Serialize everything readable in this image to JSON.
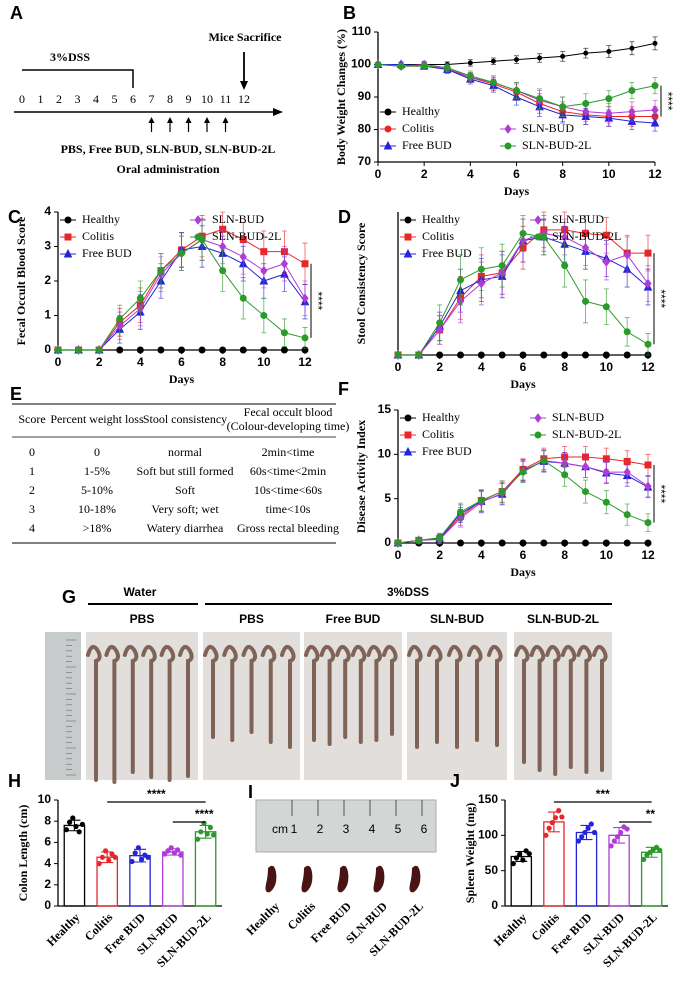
{
  "timeline": {
    "panel": "A",
    "phase": "3%DSS",
    "endpoint": "Mice Sacrifice",
    "days": [
      0,
      1,
      2,
      3,
      4,
      5,
      6,
      7,
      8,
      9,
      10,
      11,
      12
    ],
    "treatment": "PBS, Free BUD, SLN-BUD, SLN-BUD-2L",
    "route": "Oral administration"
  },
  "table": {
    "panel": "E",
    "header": [
      "Score",
      "Percent weight loss",
      "Stool consistency",
      "Fecal occult blood"
    ],
    "header_note": "(Colour-developing time)",
    "rows": [
      [
        "0",
        "0",
        "normal",
        "2min<time"
      ],
      [
        "1",
        "1-5%",
        "Soft but still formed",
        "60s<time<2min"
      ],
      [
        "2",
        "5-10%",
        "Soft",
        "10s<time<60s"
      ],
      [
        "3",
        "10-18%",
        "Very soft; wet",
        "time<10s"
      ],
      [
        "4",
        ">18%",
        "Watery diarrhea",
        "Gross rectal bleeding"
      ]
    ]
  },
  "photo_g": {
    "panel": "G",
    "control": "Water",
    "model": "3%DSS",
    "groups": [
      "PBS",
      "PBS",
      "Free BUD",
      "SLN-BUD",
      "SLN-BUD-2L"
    ]
  },
  "photo_i": {
    "panel": "I",
    "ruler_unit": "cm",
    "ruler_marks": [
      1,
      2,
      3,
      4,
      5,
      6
    ],
    "groups": [
      "Healthy",
      "Colitis",
      "Free BUD",
      "SLN-BUD",
      "SLN-BUD-2L"
    ]
  },
  "chart_data": [
    {
      "type": "line",
      "panel": "B",
      "y_label": "Body Weight Changes (%)",
      "x_label": "Days",
      "x": [
        0,
        1,
        2,
        3,
        4,
        5,
        6,
        7,
        8,
        9,
        10,
        11,
        12
      ],
      "xlim": [
        0,
        12
      ],
      "xticks": [
        0,
        2,
        4,
        6,
        8,
        10,
        12
      ],
      "ylim": [
        70,
        110
      ],
      "yticks": [
        70,
        80,
        90,
        100,
        110
      ],
      "legend": "lower left",
      "significance": {
        "label": "****",
        "between": [
          "Colitis",
          "SLN-BUD-2L"
        ]
      },
      "series": [
        {
          "name": "Healthy",
          "color": "#000000",
          "marker": "circle",
          "values": [
            100,
            100,
            100,
            100,
            100.5,
            101,
            101.5,
            102,
            102.5,
            103.5,
            104,
            105,
            106.5
          ],
          "errors": [
            0.5,
            0.5,
            0.8,
            0.8,
            1,
            1,
            1.2,
            1.3,
            1.5,
            1.5,
            1.8,
            2,
            2
          ]
        },
        {
          "name": "Colitis",
          "color": "#e8262a",
          "marker": "circle",
          "values": [
            100,
            99.5,
            99.5,
            98.5,
            96,
            94,
            91.5,
            88,
            85.5,
            84.5,
            84,
            84,
            84
          ],
          "errors": [
            0.5,
            0.8,
            1,
            1.2,
            1.5,
            2,
            2.5,
            3,
            3,
            3,
            3,
            3,
            3
          ]
        },
        {
          "name": "Free BUD",
          "color": "#2424d8",
          "marker": "triangle",
          "values": [
            100,
            100,
            99.5,
            98.5,
            95.5,
            93.5,
            90,
            87,
            84.5,
            84,
            83.5,
            82.5,
            82
          ],
          "errors": [
            0.5,
            0.8,
            1,
            1.2,
            1.5,
            2,
            2.5,
            3,
            2.5,
            2.5,
            2.5,
            2.5,
            2.5
          ]
        },
        {
          "name": "SLN-BUD",
          "color": "#b03cd6",
          "marker": "diamond",
          "values": [
            100,
            99.5,
            100,
            99,
            96,
            94.5,
            92,
            89,
            87,
            85.5,
            85,
            85.5,
            86
          ],
          "errors": [
            0.5,
            0.8,
            1,
            1.2,
            1.5,
            2,
            2.5,
            3,
            3,
            3,
            3,
            3,
            3
          ]
        },
        {
          "name": "SLN-BUD-2L",
          "color": "#2a9a2a",
          "marker": "circle",
          "values": [
            100,
            99.5,
            99.5,
            99,
            96.5,
            94.5,
            92,
            89.5,
            87,
            88,
            89.5,
            92,
            93.5
          ],
          "errors": [
            0.5,
            0.8,
            1,
            1.2,
            1.5,
            2,
            2.5,
            3,
            3,
            3,
            2.5,
            2.5,
            2.5
          ]
        }
      ]
    },
    {
      "type": "line",
      "panel": "C",
      "y_label": "Fecal Occult Blood Score",
      "x_label": "Days",
      "x": [
        0,
        1,
        2,
        3,
        4,
        5,
        6,
        7,
        8,
        9,
        10,
        11,
        12
      ],
      "xlim": [
        0,
        12
      ],
      "xticks": [
        0,
        2,
        4,
        6,
        8,
        10,
        12
      ],
      "ylim": [
        0,
        4
      ],
      "yticks": [
        0,
        1,
        2,
        3,
        4
      ],
      "legend": "upper left",
      "significance": {
        "label": "****",
        "between": [
          "Colitis",
          "SLN-BUD-2L"
        ]
      },
      "series": [
        {
          "name": "Healthy",
          "color": "#000000",
          "marker": "circle",
          "values": [
            0,
            0,
            0,
            0,
            0,
            0,
            0,
            0,
            0,
            0,
            0,
            0,
            0
          ]
        },
        {
          "name": "Colitis",
          "color": "#e8262a",
          "marker": "square",
          "values": [
            0,
            0,
            0,
            0.8,
            1.3,
            2.3,
            2.9,
            3.3,
            3.5,
            3.2,
            2.85,
            2.85,
            2.5
          ],
          "errors": [
            0,
            0,
            0,
            0.4,
            0.5,
            0.5,
            0.5,
            0.6,
            0.5,
            0.5,
            0.6,
            0.6,
            0.6
          ]
        },
        {
          "name": "Free BUD",
          "color": "#2424d8",
          "marker": "triangle",
          "values": [
            0,
            0,
            0,
            0.6,
            1.1,
            2,
            2.9,
            3,
            2.8,
            2.5,
            2,
            2.2,
            1.4
          ],
          "errors": [
            0,
            0,
            0,
            0.4,
            0.5,
            0.5,
            0.5,
            0.6,
            0.5,
            0.5,
            0.5,
            0.5,
            0.5
          ]
        },
        {
          "name": "SLN-BUD",
          "color": "#b03cd6",
          "marker": "diamond",
          "values": [
            0,
            0,
            0,
            0.7,
            1.2,
            2.2,
            2.8,
            3.2,
            3,
            2.7,
            2.3,
            2.5,
            1.5
          ],
          "errors": [
            0,
            0,
            0,
            0.4,
            0.5,
            0.5,
            0.5,
            0.6,
            0.5,
            0.5,
            0.5,
            0.5,
            0.5
          ]
        },
        {
          "name": "SLN-BUD-2L",
          "color": "#2a9a2a",
          "marker": "circle",
          "values": [
            0,
            0,
            0,
            0.9,
            1.5,
            2.3,
            2.8,
            3.2,
            2.3,
            1.5,
            1,
            0.5,
            0.35
          ],
          "errors": [
            0,
            0,
            0,
            0.4,
            0.5,
            0.5,
            0.5,
            0.6,
            0.6,
            0.6,
            0.5,
            0.4,
            0.3
          ]
        }
      ]
    },
    {
      "type": "line",
      "panel": "D",
      "y_label": "Stool Consistency Score",
      "x_label": "Days",
      "x": [
        0,
        1,
        2,
        3,
        4,
        5,
        6,
        7,
        8,
        9,
        10,
        11,
        12
      ],
      "xlim": [
        0,
        12
      ],
      "xticks": [
        0,
        2,
        4,
        6,
        8,
        10,
        12
      ],
      "ylim": [
        0,
        4
      ],
      "legend": "upper left",
      "significance": {
        "label": "****",
        "between": [
          "Colitis",
          "SLN-BUD-2L"
        ]
      },
      "series": [
        {
          "name": "Healthy",
          "color": "#000000",
          "marker": "circle",
          "values": [
            0,
            0,
            0,
            0,
            0,
            0,
            0,
            0,
            0,
            0,
            0,
            0,
            0
          ]
        },
        {
          "name": "Colitis",
          "color": "#e8262a",
          "marker": "square",
          "values": [
            0,
            0,
            0.7,
            1.6,
            2.2,
            2.3,
            3,
            3.5,
            3.5,
            3.4,
            3.35,
            2.85,
            2.85
          ],
          "errors": [
            0,
            0,
            0.4,
            0.6,
            0.6,
            0.6,
            0.6,
            0.5,
            0.5,
            0.5,
            0.5,
            0.5,
            0.5
          ]
        },
        {
          "name": "Free BUD",
          "color": "#2424d8",
          "marker": "triangle",
          "values": [
            0,
            0,
            0.8,
            1.8,
            2.1,
            2.2,
            3.2,
            3.3,
            3.1,
            2.9,
            2.7,
            2.4,
            1.9
          ],
          "errors": [
            0,
            0,
            0.4,
            0.6,
            0.6,
            0.6,
            0.6,
            0.5,
            0.5,
            0.5,
            0.5,
            0.5,
            0.5
          ]
        },
        {
          "name": "SLN-BUD",
          "color": "#b03cd6",
          "marker": "diamond",
          "values": [
            0,
            0,
            0.7,
            1.5,
            2,
            2.3,
            3.2,
            3.4,
            3.3,
            3,
            2.6,
            2.8,
            2
          ],
          "errors": [
            0,
            0,
            0.4,
            0.6,
            0.6,
            0.6,
            0.6,
            0.5,
            0.5,
            0.5,
            0.5,
            0.5,
            0.5
          ]
        },
        {
          "name": "SLN-BUD-2L",
          "color": "#2a9a2a",
          "marker": "circle",
          "values": [
            0,
            0,
            0.9,
            2.1,
            2.4,
            2.5,
            3.4,
            3.3,
            2.5,
            1.5,
            1.35,
            0.65,
            0.3
          ],
          "errors": [
            0,
            0,
            0.5,
            0.7,
            0.6,
            0.6,
            0.5,
            0.5,
            0.6,
            0.6,
            0.5,
            0.4,
            0.3
          ]
        }
      ]
    },
    {
      "type": "line",
      "panel": "F",
      "y_label": "Disease Activity Index",
      "x_label": "Days",
      "x": [
        0,
        1,
        2,
        3,
        4,
        5,
        6,
        7,
        8,
        9,
        10,
        11,
        12
      ],
      "xlim": [
        0,
        12
      ],
      "xticks": [
        0,
        2,
        4,
        6,
        8,
        10,
        12
      ],
      "ylim": [
        0,
        15
      ],
      "yticks": [
        0,
        5,
        10,
        15
      ],
      "legend": "upper left",
      "significance": {
        "label": "****",
        "between": [
          "Colitis",
          "SLN-BUD-2L"
        ]
      },
      "series": [
        {
          "name": "Healthy",
          "color": "#000000",
          "marker": "circle",
          "values": [
            0,
            0,
            0,
            0,
            0,
            0,
            0,
            0,
            0,
            0,
            0,
            0,
            0
          ]
        },
        {
          "name": "Colitis",
          "color": "#e8262a",
          "marker": "square",
          "values": [
            0,
            0.3,
            0.5,
            3,
            4.8,
            5.8,
            8.3,
            9.5,
            9.7,
            9.7,
            9.5,
            9.2,
            8.8
          ],
          "errors": [
            0,
            0.3,
            0.5,
            1,
            1.2,
            1.2,
            1.2,
            1.2,
            1.2,
            1.2,
            1.2,
            1.2,
            1.2
          ]
        },
        {
          "name": "Free BUD",
          "color": "#2424d8",
          "marker": "triangle",
          "values": [
            0,
            0.3,
            0.5,
            3.3,
            4.7,
            5.5,
            8.2,
            9.2,
            9,
            8.6,
            7.9,
            7.6,
            6.3
          ],
          "errors": [
            0,
            0.3,
            0.5,
            1,
            1.2,
            1.2,
            1.2,
            1.2,
            1.2,
            1.2,
            1.2,
            1.2,
            1.2
          ]
        },
        {
          "name": "SLN-BUD",
          "color": "#b03cd6",
          "marker": "diamond",
          "values": [
            0,
            0.3,
            0.4,
            2.8,
            4.6,
            5.6,
            8.1,
            9.3,
            9,
            8.6,
            8,
            8,
            6.4
          ],
          "errors": [
            0,
            0.3,
            0.5,
            1,
            1.2,
            1.2,
            1.2,
            1.2,
            1.2,
            1.2,
            1.2,
            1.2,
            1.2
          ]
        },
        {
          "name": "SLN-BUD-2L",
          "color": "#2a9a2a",
          "marker": "circle",
          "values": [
            0,
            0.3,
            0.6,
            3.5,
            4.8,
            5.8,
            8,
            9.3,
            7.7,
            5.8,
            4.6,
            3.2,
            2.3
          ],
          "errors": [
            0,
            0.3,
            0.5,
            1,
            1.2,
            1.2,
            1.2,
            1.2,
            1.3,
            1.3,
            1.3,
            1.2,
            1
          ]
        }
      ]
    },
    {
      "type": "bar",
      "panel": "H",
      "y_label": "Colon Length (cm)",
      "categories": [
        "Healthy",
        "Colitis",
        "Free BUD",
        "SLN-BUD",
        "SLN-BUD-2L"
      ],
      "colors": [
        "#000000",
        "#e8262a",
        "#2424d8",
        "#b03cd6",
        "#2a9a2a"
      ],
      "values": [
        7.6,
        4.6,
        4.75,
        5.1,
        7.0
      ],
      "errors": [
        0.5,
        0.5,
        0.6,
        0.3,
        0.6
      ],
      "points": [
        [
          7.2,
          7.9,
          8.3,
          7.5,
          7.0,
          7.7
        ],
        [
          4.0,
          4.6,
          5.2,
          4.3,
          4.9,
          4.6
        ],
        [
          4.2,
          5.0,
          5.5,
          4.4,
          4.8,
          4.6
        ],
        [
          4.9,
          5.2,
          5.5,
          5.0,
          5.3,
          4.8
        ],
        [
          6.3,
          7.0,
          7.8,
          6.8,
          7.4,
          6.7
        ]
      ],
      "ylim": [
        0,
        10
      ],
      "yticks": [
        0,
        2,
        4,
        6,
        8,
        10
      ],
      "significance": [
        {
          "between": [
            "Colitis",
            "SLN-BUD-2L"
          ],
          "label": "****"
        },
        {
          "between": [
            "SLN-BUD",
            "SLN-BUD-2L"
          ],
          "label": "****"
        }
      ]
    },
    {
      "type": "bar",
      "panel": "J",
      "y_label": "Spleen Weight (mg)",
      "categories": [
        "Healthy",
        "Colitis",
        "Free BUD",
        "SLN-BUD",
        "SLN-BUD-2L"
      ],
      "colors": [
        "#000000",
        "#e8262a",
        "#2424d8",
        "#b03cd6",
        "#2a9a2a"
      ],
      "values": [
        70,
        119,
        104,
        100,
        76
      ],
      "errors": [
        7,
        14,
        10,
        11,
        7
      ],
      "points": [
        [
          60,
          68,
          73,
          65,
          78,
          74
        ],
        [
          100,
          110,
          118,
          125,
          135,
          126
        ],
        [
          92,
          98,
          104,
          110,
          116,
          104
        ],
        [
          85,
          92,
          98,
          104,
          112,
          109
        ],
        [
          66,
          72,
          76,
          80,
          83,
          79
        ]
      ],
      "ylim": [
        0,
        150
      ],
      "yticks": [
        0,
        50,
        100,
        150
      ],
      "significance": [
        {
          "between": [
            "Colitis",
            "SLN-BUD-2L"
          ],
          "label": "***"
        },
        {
          "between": [
            "SLN-BUD",
            "SLN-BUD-2L"
          ],
          "label": "**"
        }
      ]
    }
  ]
}
